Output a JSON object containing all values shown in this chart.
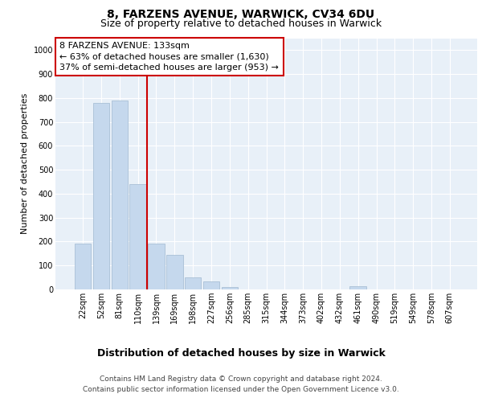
{
  "title1": "8, FARZENS AVENUE, WARWICK, CV34 6DU",
  "title2": "Size of property relative to detached houses in Warwick",
  "xlabel": "Distribution of detached houses by size in Warwick",
  "ylabel": "Number of detached properties",
  "categories": [
    "22sqm",
    "52sqm",
    "81sqm",
    "110sqm",
    "139sqm",
    "169sqm",
    "198sqm",
    "227sqm",
    "256sqm",
    "285sqm",
    "315sqm",
    "344sqm",
    "373sqm",
    "402sqm",
    "432sqm",
    "461sqm",
    "490sqm",
    "519sqm",
    "549sqm",
    "578sqm",
    "607sqm"
  ],
  "values": [
    193,
    780,
    790,
    440,
    193,
    143,
    50,
    35,
    10,
    0,
    0,
    0,
    0,
    0,
    0,
    12,
    0,
    0,
    0,
    0,
    0
  ],
  "bar_color": "#c5d8ed",
  "bar_edge_color": "#a0b8d0",
  "vline_x_index": 4,
  "vline_color": "#cc0000",
  "annotation_text": "8 FARZENS AVENUE: 133sqm\n← 63% of detached houses are smaller (1,630)\n37% of semi-detached houses are larger (953) →",
  "annotation_box_color": "#ffffff",
  "annotation_box_edge": "#cc0000",
  "ylim": [
    0,
    1050
  ],
  "yticks": [
    0,
    100,
    200,
    300,
    400,
    500,
    600,
    700,
    800,
    900,
    1000
  ],
  "bg_color": "#e8f0f8",
  "footer": "Contains HM Land Registry data © Crown copyright and database right 2024.\nContains public sector information licensed under the Open Government Licence v3.0.",
  "title1_fontsize": 10,
  "title2_fontsize": 9,
  "xlabel_fontsize": 9,
  "ylabel_fontsize": 8,
  "tick_fontsize": 7,
  "annotation_fontsize": 8,
  "footer_fontsize": 6.5
}
